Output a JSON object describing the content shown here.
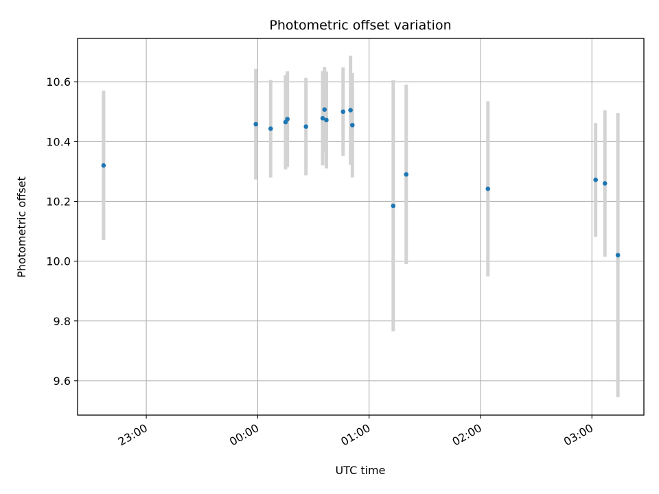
{
  "chart_data": {
    "type": "scatter",
    "title": "Photometric offset variation",
    "xlabel": "UTC time",
    "ylabel": "Photometric offset",
    "x_axis": {
      "kind": "time",
      "range": [
        "22:23",
        "03:28"
      ],
      "ticks": [
        "23:00",
        "00:00",
        "01:00",
        "02:00",
        "03:00"
      ]
    },
    "y_axis": {
      "range": [
        9.485,
        10.745
      ],
      "ticks": [
        9.6,
        9.8,
        10.0,
        10.2,
        10.4,
        10.6
      ],
      "tick_labels": [
        "9.6",
        "9.8",
        "10.0",
        "10.2",
        "10.4",
        "10.6"
      ]
    },
    "grid": true,
    "colors": {
      "point": "#1f77b4",
      "errorbar": "#d3d3d3",
      "grid": "#b0b0b0"
    },
    "points": [
      {
        "t": "22:37",
        "y": 10.32,
        "err": 0.25
      },
      {
        "t": "23:59",
        "y": 10.458,
        "err": 0.185
      },
      {
        "t": "00:07",
        "y": 10.443,
        "err": 0.163
      },
      {
        "t": "00:15",
        "y": 10.465,
        "err": 0.158
      },
      {
        "t": "00:16",
        "y": 10.475,
        "err": 0.16
      },
      {
        "t": "00:26",
        "y": 10.45,
        "err": 0.163
      },
      {
        "t": "00:35",
        "y": 10.478,
        "err": 0.158
      },
      {
        "t": "00:36",
        "y": 10.507,
        "err": 0.142
      },
      {
        "t": "00:37",
        "y": 10.472,
        "err": 0.162
      },
      {
        "t": "00:46",
        "y": 10.5,
        "err": 0.148
      },
      {
        "t": "00:50",
        "y": 10.505,
        "err": 0.182
      },
      {
        "t": "00:51",
        "y": 10.455,
        "err": 0.175
      },
      {
        "t": "01:13",
        "y": 10.185,
        "err": 0.42
      },
      {
        "t": "01:20",
        "y": 10.29,
        "err": 0.3
      },
      {
        "t": "02:04",
        "y": 10.242,
        "err": 0.293
      },
      {
        "t": "03:02",
        "y": 10.272,
        "err": 0.19
      },
      {
        "t": "03:07",
        "y": 10.26,
        "err": 0.245
      },
      {
        "t": "03:14",
        "y": 10.02,
        "err": 0.475
      }
    ]
  }
}
